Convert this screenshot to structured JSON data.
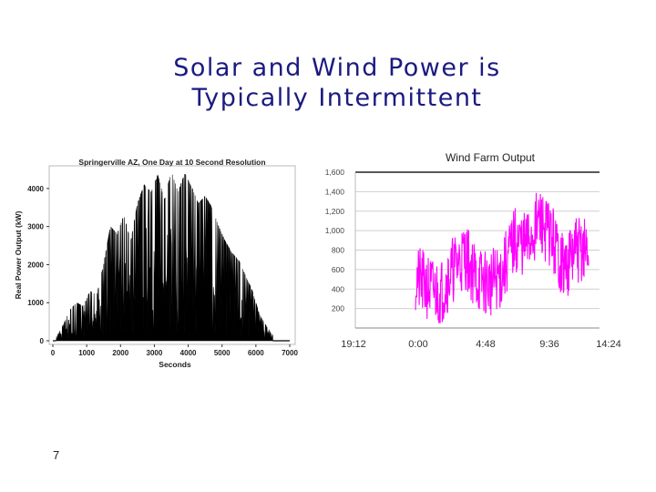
{
  "slide": {
    "title_line1": "Solar and Wind Power is",
    "title_line2": "Typically Intermittent",
    "slide_number": "7"
  },
  "chart_data": [
    {
      "type": "area",
      "title": "Springerville AZ, One Day at 10 Second Resolution",
      "xlabel": "Seconds",
      "ylabel": "Real Power Output (kW)",
      "xlim": [
        0,
        7000
      ],
      "ylim": [
        0,
        4500
      ],
      "x_ticks": [
        0,
        1000,
        2000,
        3000,
        4000,
        5000,
        6000,
        7000
      ],
      "y_ticks": [
        0,
        1000,
        2000,
        3000,
        4000
      ],
      "grid": false,
      "color": "#000000",
      "x": [
        100,
        300,
        500,
        700,
        900,
        1100,
        1300,
        1500,
        1700,
        1900,
        2100,
        2300,
        2500,
        2700,
        2900,
        3100,
        3300,
        3500,
        3700,
        3900,
        4100,
        4300,
        4500,
        4700,
        4900,
        5100,
        5300,
        5500,
        5700,
        5900,
        6100,
        6300,
        6500
      ],
      "series": [
        {
          "values": [
            100,
            400,
            800,
            1000,
            900,
            1300,
            1200,
            2000,
            3000,
            2800,
            3300,
            2600,
            3600,
            4100,
            3900,
            4350,
            3700,
            4450,
            3900,
            4400,
            4050,
            3600,
            3800,
            3500,
            3000,
            2600,
            2300,
            2100,
            1700,
            1300,
            700,
            400,
            150
          ]
        }
      ]
    },
    {
      "type": "line",
      "title": "Wind Farm Output",
      "xlabel": "",
      "ylabel": "",
      "x_ticks": [
        "19:12",
        "0:00",
        "4:48",
        "9:36",
        "14:24"
      ],
      "y_ticks": [
        "200",
        "400",
        "600",
        "800",
        "1,000",
        "1,200",
        "1,400",
        "1,600"
      ],
      "ylim": [
        0,
        1600
      ],
      "grid": true,
      "color": "#ff00ff",
      "x": [
        "0:00",
        "1:00",
        "2:00",
        "3:00",
        "4:00",
        "5:00",
        "6:00",
        "7:00",
        "8:00",
        "9:00",
        "10:00",
        "11:00",
        "12:00",
        "13:00",
        "14:00"
      ],
      "series": [
        {
          "values": [
            500,
            420,
            350,
            600,
            750,
            500,
            450,
            550,
            900,
            850,
            1100,
            950,
            600,
            800,
            800
          ]
        }
      ]
    }
  ]
}
